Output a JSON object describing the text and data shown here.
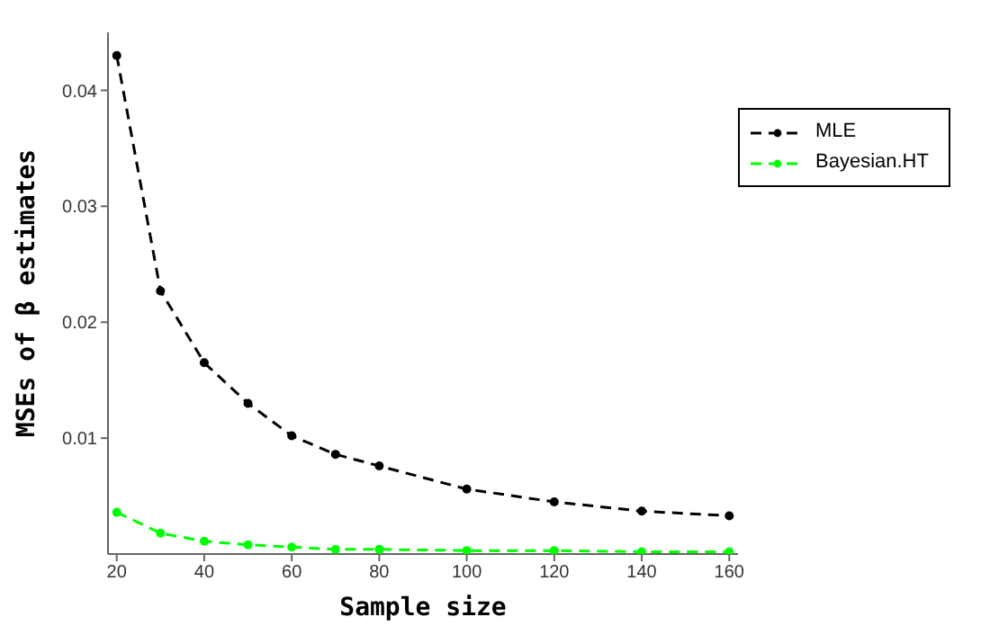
{
  "chart_data": {
    "type": "line",
    "xlabel": "Sample size",
    "ylabel": "MSEs of β estimates",
    "x": [
      20,
      30,
      40,
      50,
      60,
      70,
      80,
      100,
      120,
      140,
      160
    ],
    "series": [
      {
        "name": "MLE",
        "color": "#000000",
        "values": [
          0.043,
          0.0227,
          0.0165,
          0.013,
          0.0102,
          0.0086,
          0.0076,
          0.0056,
          0.0045,
          0.0037,
          0.0033
        ]
      },
      {
        "name": "Bayesian.HT",
        "color": "#00ff00",
        "values": [
          0.0036,
          0.0018,
          0.0011,
          0.0008,
          0.0006,
          0.0004,
          0.0004,
          0.0003,
          0.0003,
          0.0002,
          0.0002
        ]
      }
    ],
    "xlim": [
      18,
      162
    ],
    "xticks": [
      20,
      40,
      60,
      80,
      100,
      120,
      140,
      160
    ],
    "ylim": [
      0,
      0.045
    ],
    "yticks": [
      0.01,
      0.02,
      0.03,
      0.04
    ],
    "grid": false,
    "legend": "top right",
    "marker": "circle",
    "line_style": "dashed"
  }
}
